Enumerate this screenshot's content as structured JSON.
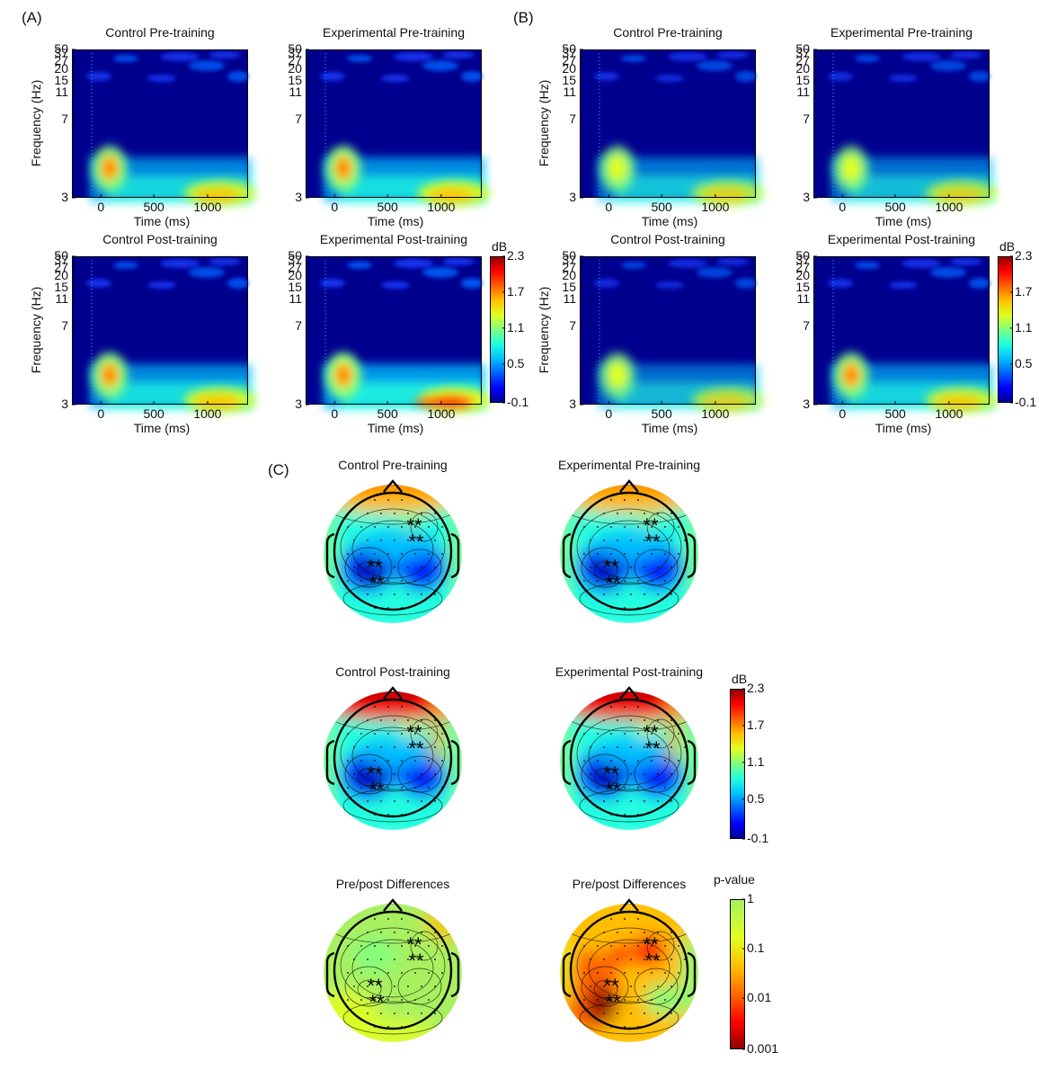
{
  "panel_labels": [
    "(A)",
    "(B)",
    "(C)"
  ],
  "chart_data": [
    {
      "type": "heatmap",
      "id": "A",
      "kind": "time-frequency",
      "titles": [
        "Control Pre-training",
        "Experimental Pre-training",
        "Control Post-training",
        "Experimental Post-training"
      ],
      "xlabel": "Time (ms)",
      "ylabel": "Frequency (Hz)",
      "xticks": [
        "0",
        "500",
        "1000"
      ],
      "yticks": [
        "50",
        "37",
        "27",
        "20",
        "15",
        "11",
        "7",
        "3"
      ],
      "colorbar": {
        "unit": "dB",
        "ticks": [
          "2.3",
          "1.7",
          "1.1",
          "0.5",
          "-0.1"
        ],
        "range": [
          -0.1,
          2.3
        ]
      },
      "intensities": [
        0.75,
        0.85,
        0.82,
        1.0
      ]
    },
    {
      "type": "heatmap",
      "id": "B",
      "kind": "time-frequency",
      "titles": [
        "Control Pre-training",
        "Experimental Pre-training",
        "Control Post-training",
        "Experimental Post-training"
      ],
      "xlabel": "Time (ms)",
      "ylabel": "Frequency (Hz)",
      "xticks": [
        "0",
        "500",
        "1000"
      ],
      "yticks": [
        "50",
        "37",
        "27",
        "20",
        "15",
        "11",
        "7",
        "3"
      ],
      "colorbar": {
        "unit": "dB",
        "ticks": [
          "2.3",
          "1.7",
          "1.1",
          "0.5",
          "-0.1"
        ],
        "range": [
          -0.1,
          2.3
        ]
      },
      "intensities": [
        0.55,
        0.5,
        0.45,
        0.72
      ]
    },
    {
      "type": "heatmap",
      "id": "C",
      "kind": "scalp-topography",
      "titles": [
        "Control Pre-training",
        "Experimental Pre-training",
        "Control Post-training",
        "Experimental Post-training",
        "Pre/post Differences",
        "Pre/post Differences"
      ],
      "colorbar_db": {
        "unit": "dB",
        "ticks": [
          "2.3",
          "1.7",
          "1.1",
          "0.5",
          "-0.1"
        ]
      },
      "colorbar_p": {
        "unit": "p-value",
        "ticks": [
          "1",
          "0.1",
          "0.01",
          "0.001"
        ]
      },
      "significance_marker": "**"
    }
  ]
}
